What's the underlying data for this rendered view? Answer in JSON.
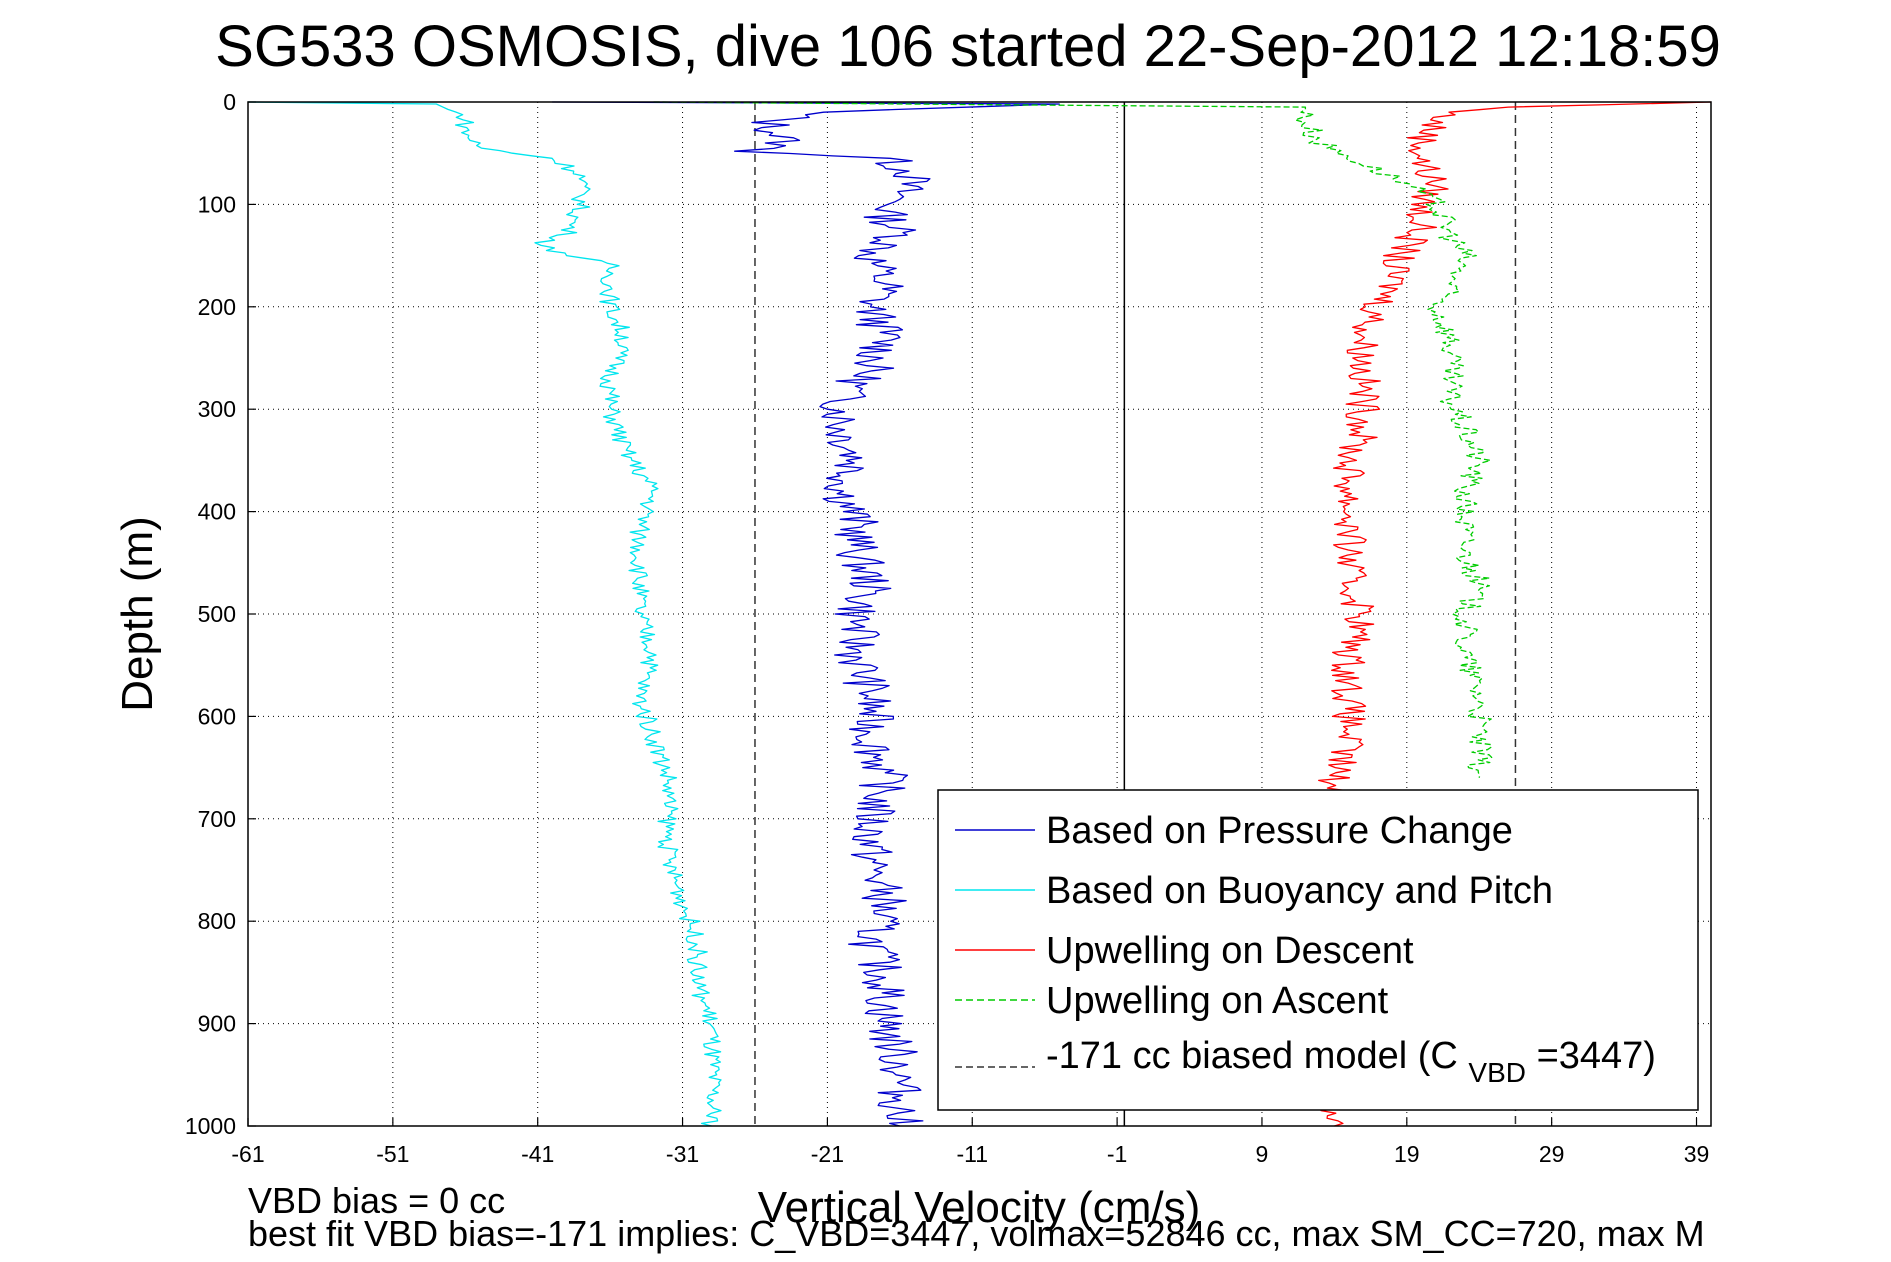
{
  "chart_data": {
    "type": "line",
    "title": "SG533 OSMOSIS, dive 106 started 22-Sep-2012 12:18:59",
    "xlabel": "Vertical Velocity (cm/s)",
    "ylabel": "Depth (m)",
    "xlim": [
      -61,
      40
    ],
    "ylim": [
      0,
      1000
    ],
    "y_reversed": true,
    "x_ticks": [
      -61,
      -51,
      -41,
      -31,
      -21,
      -11,
      -1,
      9,
      19,
      29,
      39
    ],
    "x_tick_labels": [
      "-61",
      "-51",
      "-41",
      "-31",
      "-21",
      "-11",
      "-1",
      "9",
      "19",
      "29",
      "39"
    ],
    "y_ticks": [
      0,
      100,
      200,
      300,
      400,
      500,
      600,
      700,
      800,
      900,
      1000
    ],
    "y_tick_labels": [
      "0",
      "100",
      "200",
      "300",
      "400",
      "500",
      "600",
      "700",
      "800",
      "900",
      "1000"
    ],
    "grid": true,
    "legend_position": "bottom-right",
    "reference_lines": [
      {
        "x": -26,
        "style": "dashed",
        "color": "#333333"
      },
      {
        "x": 26.5,
        "style": "dashed",
        "color": "#333333"
      },
      {
        "x": -0.5,
        "style": "solid",
        "color": "#000000"
      }
    ],
    "series": [
      {
        "name": "Based on Pressure Change",
        "color": "#0000cc",
        "style": "solid",
        "depth": [
          0,
          2,
          10,
          20,
          40,
          48,
          55,
          70,
          90,
          110,
          130,
          150,
          180,
          200,
          230,
          260,
          290,
          320,
          350,
          380,
          410,
          440,
          470,
          500,
          540,
          580,
          620,
          660,
          700,
          740,
          780,
          820,
          860,
          900,
          940,
          980,
          1000
        ],
        "values": [
          -40,
          -5,
          -22,
          -25,
          -24,
          -26,
          -17,
          -15,
          -16,
          -17,
          -16,
          -18,
          -17,
          -18,
          -17,
          -18,
          -20,
          -20,
          -19,
          -20,
          -19,
          -19,
          -18,
          -19,
          -19,
          -18,
          -18,
          -17,
          -18,
          -18,
          -17,
          -18,
          -17,
          -17,
          -16,
          -16,
          -16
        ]
      },
      {
        "name": "Based on Buoyancy and Pitch",
        "color": "#00e5ee",
        "style": "solid",
        "depth": [
          0,
          2,
          15,
          30,
          45,
          55,
          70,
          100,
          130,
          140,
          160,
          200,
          230,
          270,
          300,
          340,
          380,
          420,
          460,
          500,
          540,
          580,
          620,
          660,
          700,
          740,
          780,
          820,
          860,
          900,
          940,
          980,
          1000
        ],
        "values": [
          -61,
          -48,
          -46,
          -46,
          -45,
          -40,
          -38,
          -38,
          -39,
          -41,
          -36,
          -36,
          -35,
          -36,
          -36,
          -35,
          -33,
          -34,
          -34,
          -34,
          -33,
          -34,
          -33,
          -32,
          -32,
          -32,
          -31,
          -30,
          -30,
          -29,
          -29,
          -29,
          -29
        ]
      },
      {
        "name": "Upwelling on Descent",
        "color": "#ff0000",
        "style": "solid",
        "depth": [
          0,
          5,
          10,
          20,
          40,
          60,
          80,
          100,
          120,
          140,
          160,
          180,
          200,
          230,
          260,
          290,
          320,
          350,
          380,
          410,
          440,
          470,
          500,
          540,
          580,
          620,
          660,
          680,
          990,
          1000
        ],
        "values": [
          40,
          26,
          22,
          21,
          20,
          20,
          21,
          20,
          20,
          19,
          18,
          18,
          17,
          16,
          16,
          16,
          16,
          15,
          15,
          15,
          15,
          15,
          16,
          15,
          15,
          15,
          14,
          14,
          14,
          14
        ]
      },
      {
        "name": "Upwelling on Ascent",
        "color": "#00cc00",
        "style": "dashed",
        "depth": [
          0,
          5,
          20,
          40,
          60,
          80,
          100,
          130,
          150,
          180,
          200,
          230,
          260,
          290,
          320,
          350,
          380,
          410,
          440,
          470,
          500,
          540,
          580,
          620,
          660
        ],
        "values": [
          -33,
          12,
          12,
          13,
          16,
          19,
          21,
          22,
          23,
          22,
          21,
          22,
          22,
          22,
          23,
          24,
          23,
          23,
          23,
          24,
          23,
          23,
          24,
          24,
          24
        ]
      },
      {
        "name": "-171 cc biased model (C_VBD=3447)",
        "color": "#333333",
        "style": "dashed",
        "depth": [],
        "values": []
      }
    ],
    "legend": [
      {
        "label": "Based on Pressure Change",
        "color": "#0000cc",
        "style": "solid"
      },
      {
        "label": "Based on Buoyancy and Pitch",
        "color": "#00e5ee",
        "style": "solid"
      },
      {
        "label": "Upwelling on Descent",
        "color": "#ff0000",
        "style": "solid"
      },
      {
        "label": "Upwelling on Ascent",
        "color": "#00cc00",
        "style": "dashed"
      },
      {
        "label_prefix": "-171 cc biased model (C",
        "label_sub": "VBD",
        "label_suffix": "=3447)",
        "color": "#333333",
        "style": "dashed"
      }
    ],
    "annotations": [
      "VBD bias = 0 cc",
      "best fit VBD bias=-171 implies: C_VBD=3447, volmax=52846 cc, max SM_CC=720, max M"
    ]
  }
}
